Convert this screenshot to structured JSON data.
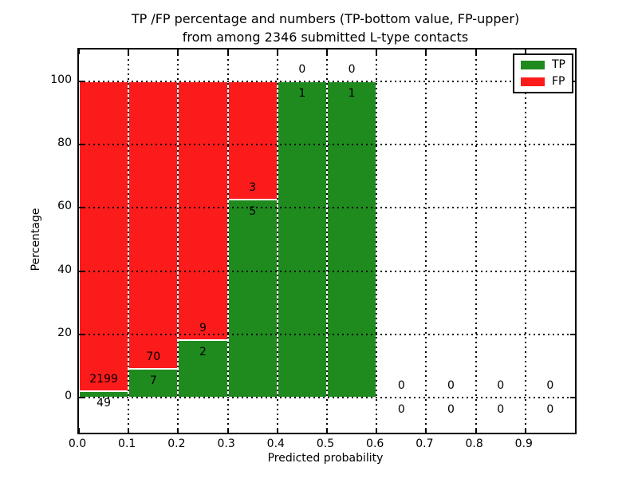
{
  "chart_data": {
    "type": "bar",
    "stacked": true,
    "title_line1": "TP /FP percentage and numbers (TP-bottom value, FP-upper)",
    "title_line2": "from among 2346 submitted L-type contacts",
    "xlabel": "Predicted probability",
    "ylabel": "Percentage",
    "xlim": [
      0.0,
      1.0
    ],
    "ylim": [
      -11,
      110
    ],
    "grid": true,
    "x_ticks": [
      0.0,
      0.1,
      0.2,
      0.3,
      0.4,
      0.5,
      0.6,
      0.7,
      0.8,
      0.9
    ],
    "x_tick_labels": [
      "0.0",
      "0.1",
      "0.2",
      "0.3",
      "0.4",
      "0.5",
      "0.6",
      "0.7",
      "0.8",
      "0.9"
    ],
    "y_ticks": [
      0,
      20,
      40,
      60,
      80,
      100
    ],
    "y_tick_labels": [
      "0",
      "20",
      "40",
      "60",
      "80",
      "100"
    ],
    "total_contacts": 2346,
    "legend": [
      {
        "label": "TP",
        "color": "#1f8b1f"
      },
      {
        "label": "FP",
        "color": "#fb1b1b"
      }
    ],
    "colors": {
      "tp": "#1f8b1f",
      "fp": "#fb1b1b",
      "bar_edge": "#ffffff",
      "grid": "#000000",
      "background": "#ffffff"
    },
    "bins": [
      {
        "x0": 0.0,
        "x1": 0.1,
        "tp": 49,
        "fp": 2199
      },
      {
        "x0": 0.1,
        "x1": 0.2,
        "tp": 7,
        "fp": 70
      },
      {
        "x0": 0.2,
        "x1": 0.3,
        "tp": 2,
        "fp": 9
      },
      {
        "x0": 0.3,
        "x1": 0.4,
        "tp": 5,
        "fp": 3
      },
      {
        "x0": 0.4,
        "x1": 0.5,
        "tp": 1,
        "fp": 0
      },
      {
        "x0": 0.5,
        "x1": 0.6,
        "tp": 1,
        "fp": 0
      },
      {
        "x0": 0.6,
        "x1": 0.7,
        "tp": 0,
        "fp": 0
      },
      {
        "x0": 0.7,
        "x1": 0.8,
        "tp": 0,
        "fp": 0
      },
      {
        "x0": 0.8,
        "x1": 0.9,
        "tp": 0,
        "fp": 0
      },
      {
        "x0": 0.9,
        "x1": 1.0,
        "tp": 0,
        "fp": 0
      }
    ]
  }
}
